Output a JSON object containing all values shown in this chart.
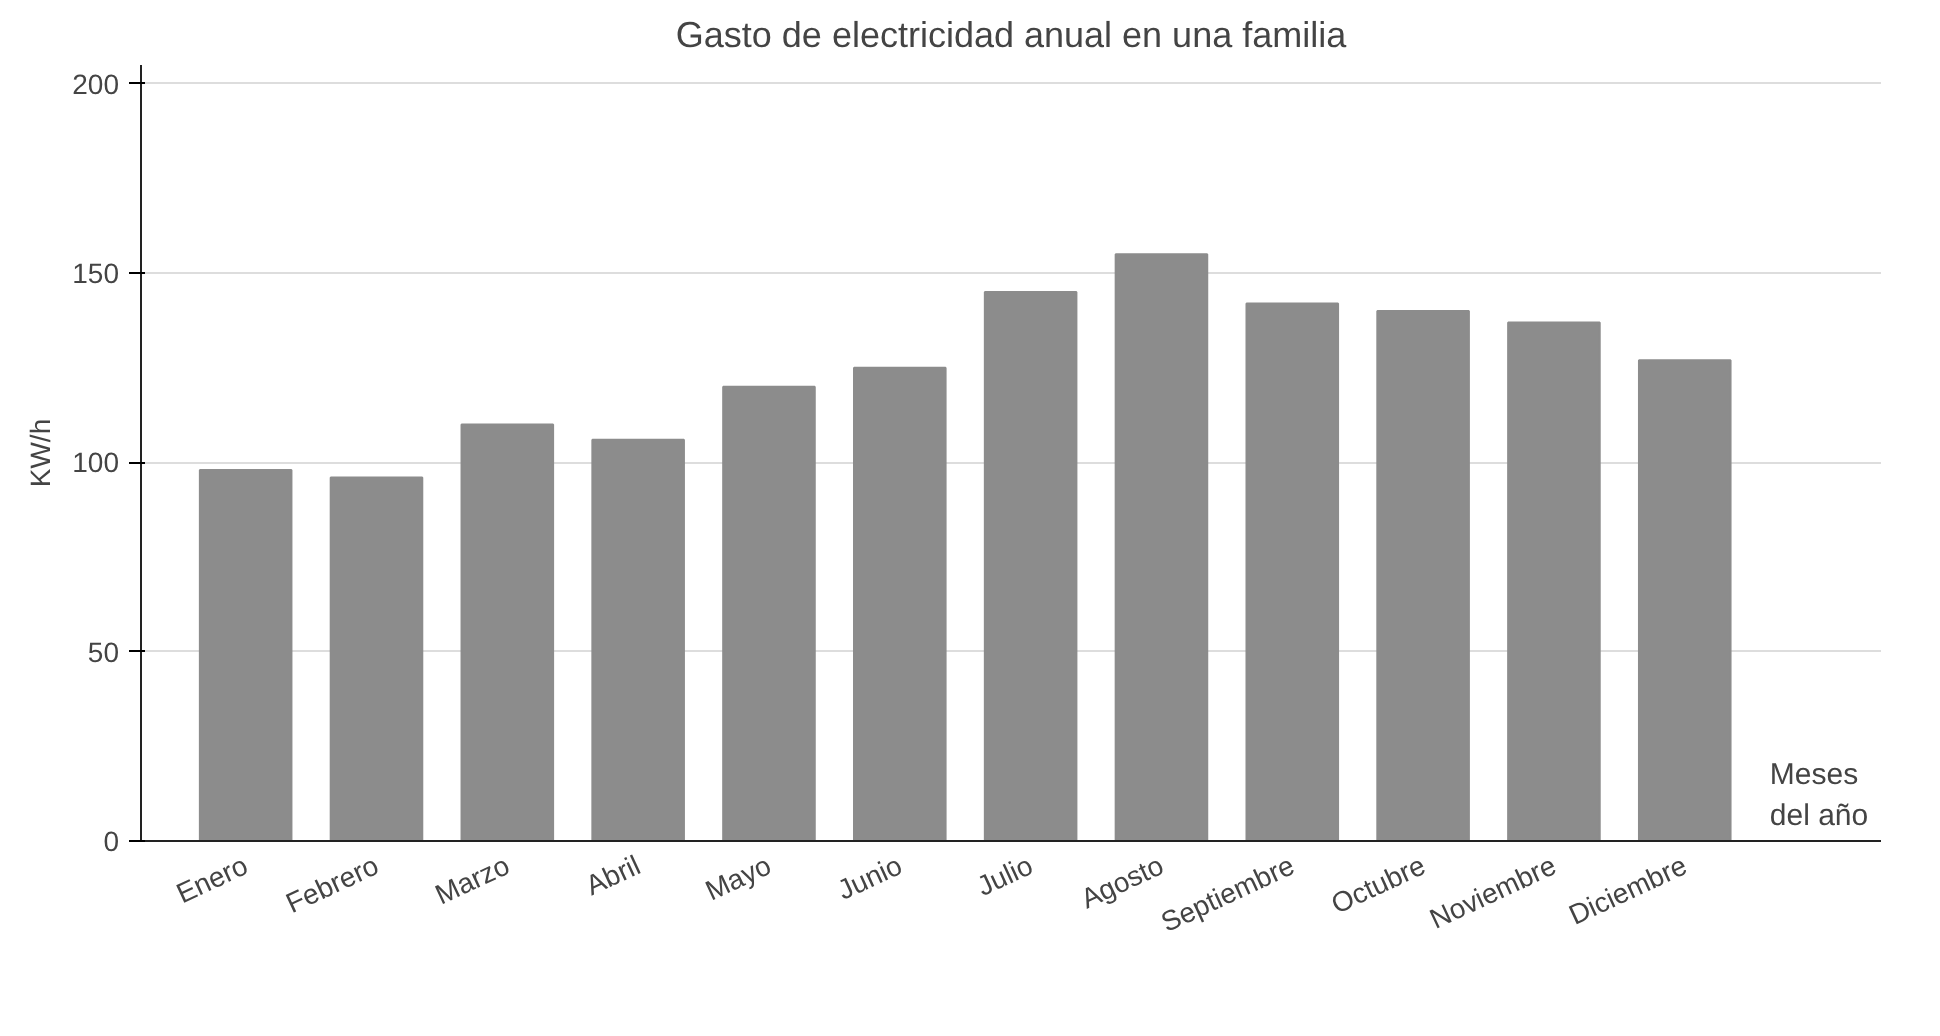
{
  "chart_data": {
    "type": "bar",
    "title": "Gasto de electricidad anual en una familia",
    "xlabel": "Meses del año",
    "ylabel": "KW/h",
    "categories": [
      "Enero",
      "Febrero",
      "Marzo",
      "Abril",
      "Mayo",
      "Junio",
      "Julio",
      "Agosto",
      "Septiembre",
      "Octubre",
      "Noviembre",
      "Diciembre"
    ],
    "values": [
      98,
      96,
      110,
      106,
      120,
      125,
      145,
      155,
      142,
      140,
      137,
      127
    ],
    "color": "#8c8c8c",
    "ylim": [
      0,
      205
    ],
    "yticks": [
      0,
      50,
      100,
      150,
      200
    ],
    "grid": "y"
  }
}
